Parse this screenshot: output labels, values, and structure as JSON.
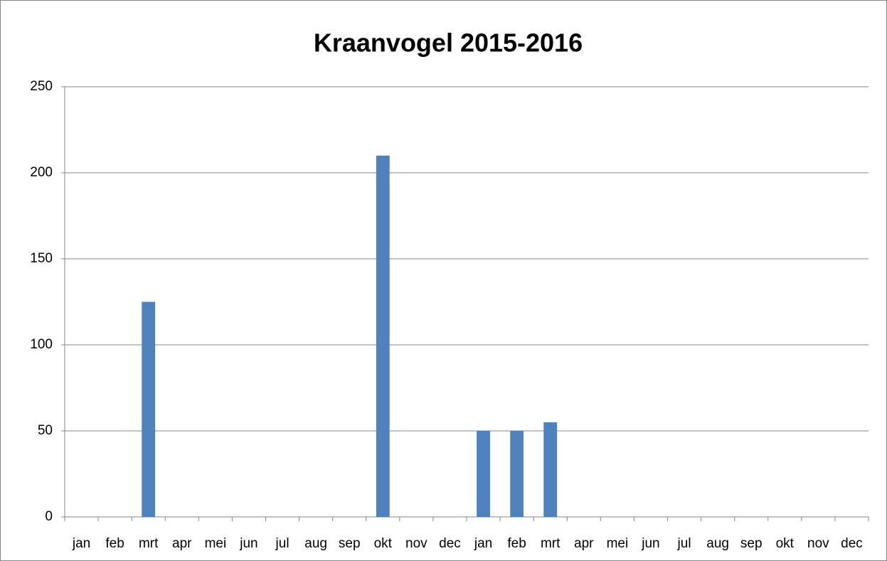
{
  "chart_data": {
    "type": "bar",
    "title": "Kraanvogel 2015-2016",
    "categories": [
      "jan",
      "feb",
      "mrt",
      "apr",
      "mei",
      "jun",
      "jul",
      "aug",
      "sep",
      "okt",
      "nov",
      "dec",
      "jan",
      "feb",
      "mrt",
      "apr",
      "mei",
      "jun",
      "jul",
      "aug",
      "sep",
      "okt",
      "nov",
      "dec"
    ],
    "values": [
      0,
      0,
      125,
      0,
      0,
      0,
      0,
      0,
      0,
      210,
      0,
      0,
      50,
      50,
      55,
      0,
      0,
      0,
      0,
      0,
      0,
      0,
      0,
      0
    ],
    "color": "#4f81bd",
    "ylim": [
      0,
      250
    ],
    "yticks": [
      0,
      50,
      100,
      150,
      200,
      250
    ],
    "grid": true
  }
}
